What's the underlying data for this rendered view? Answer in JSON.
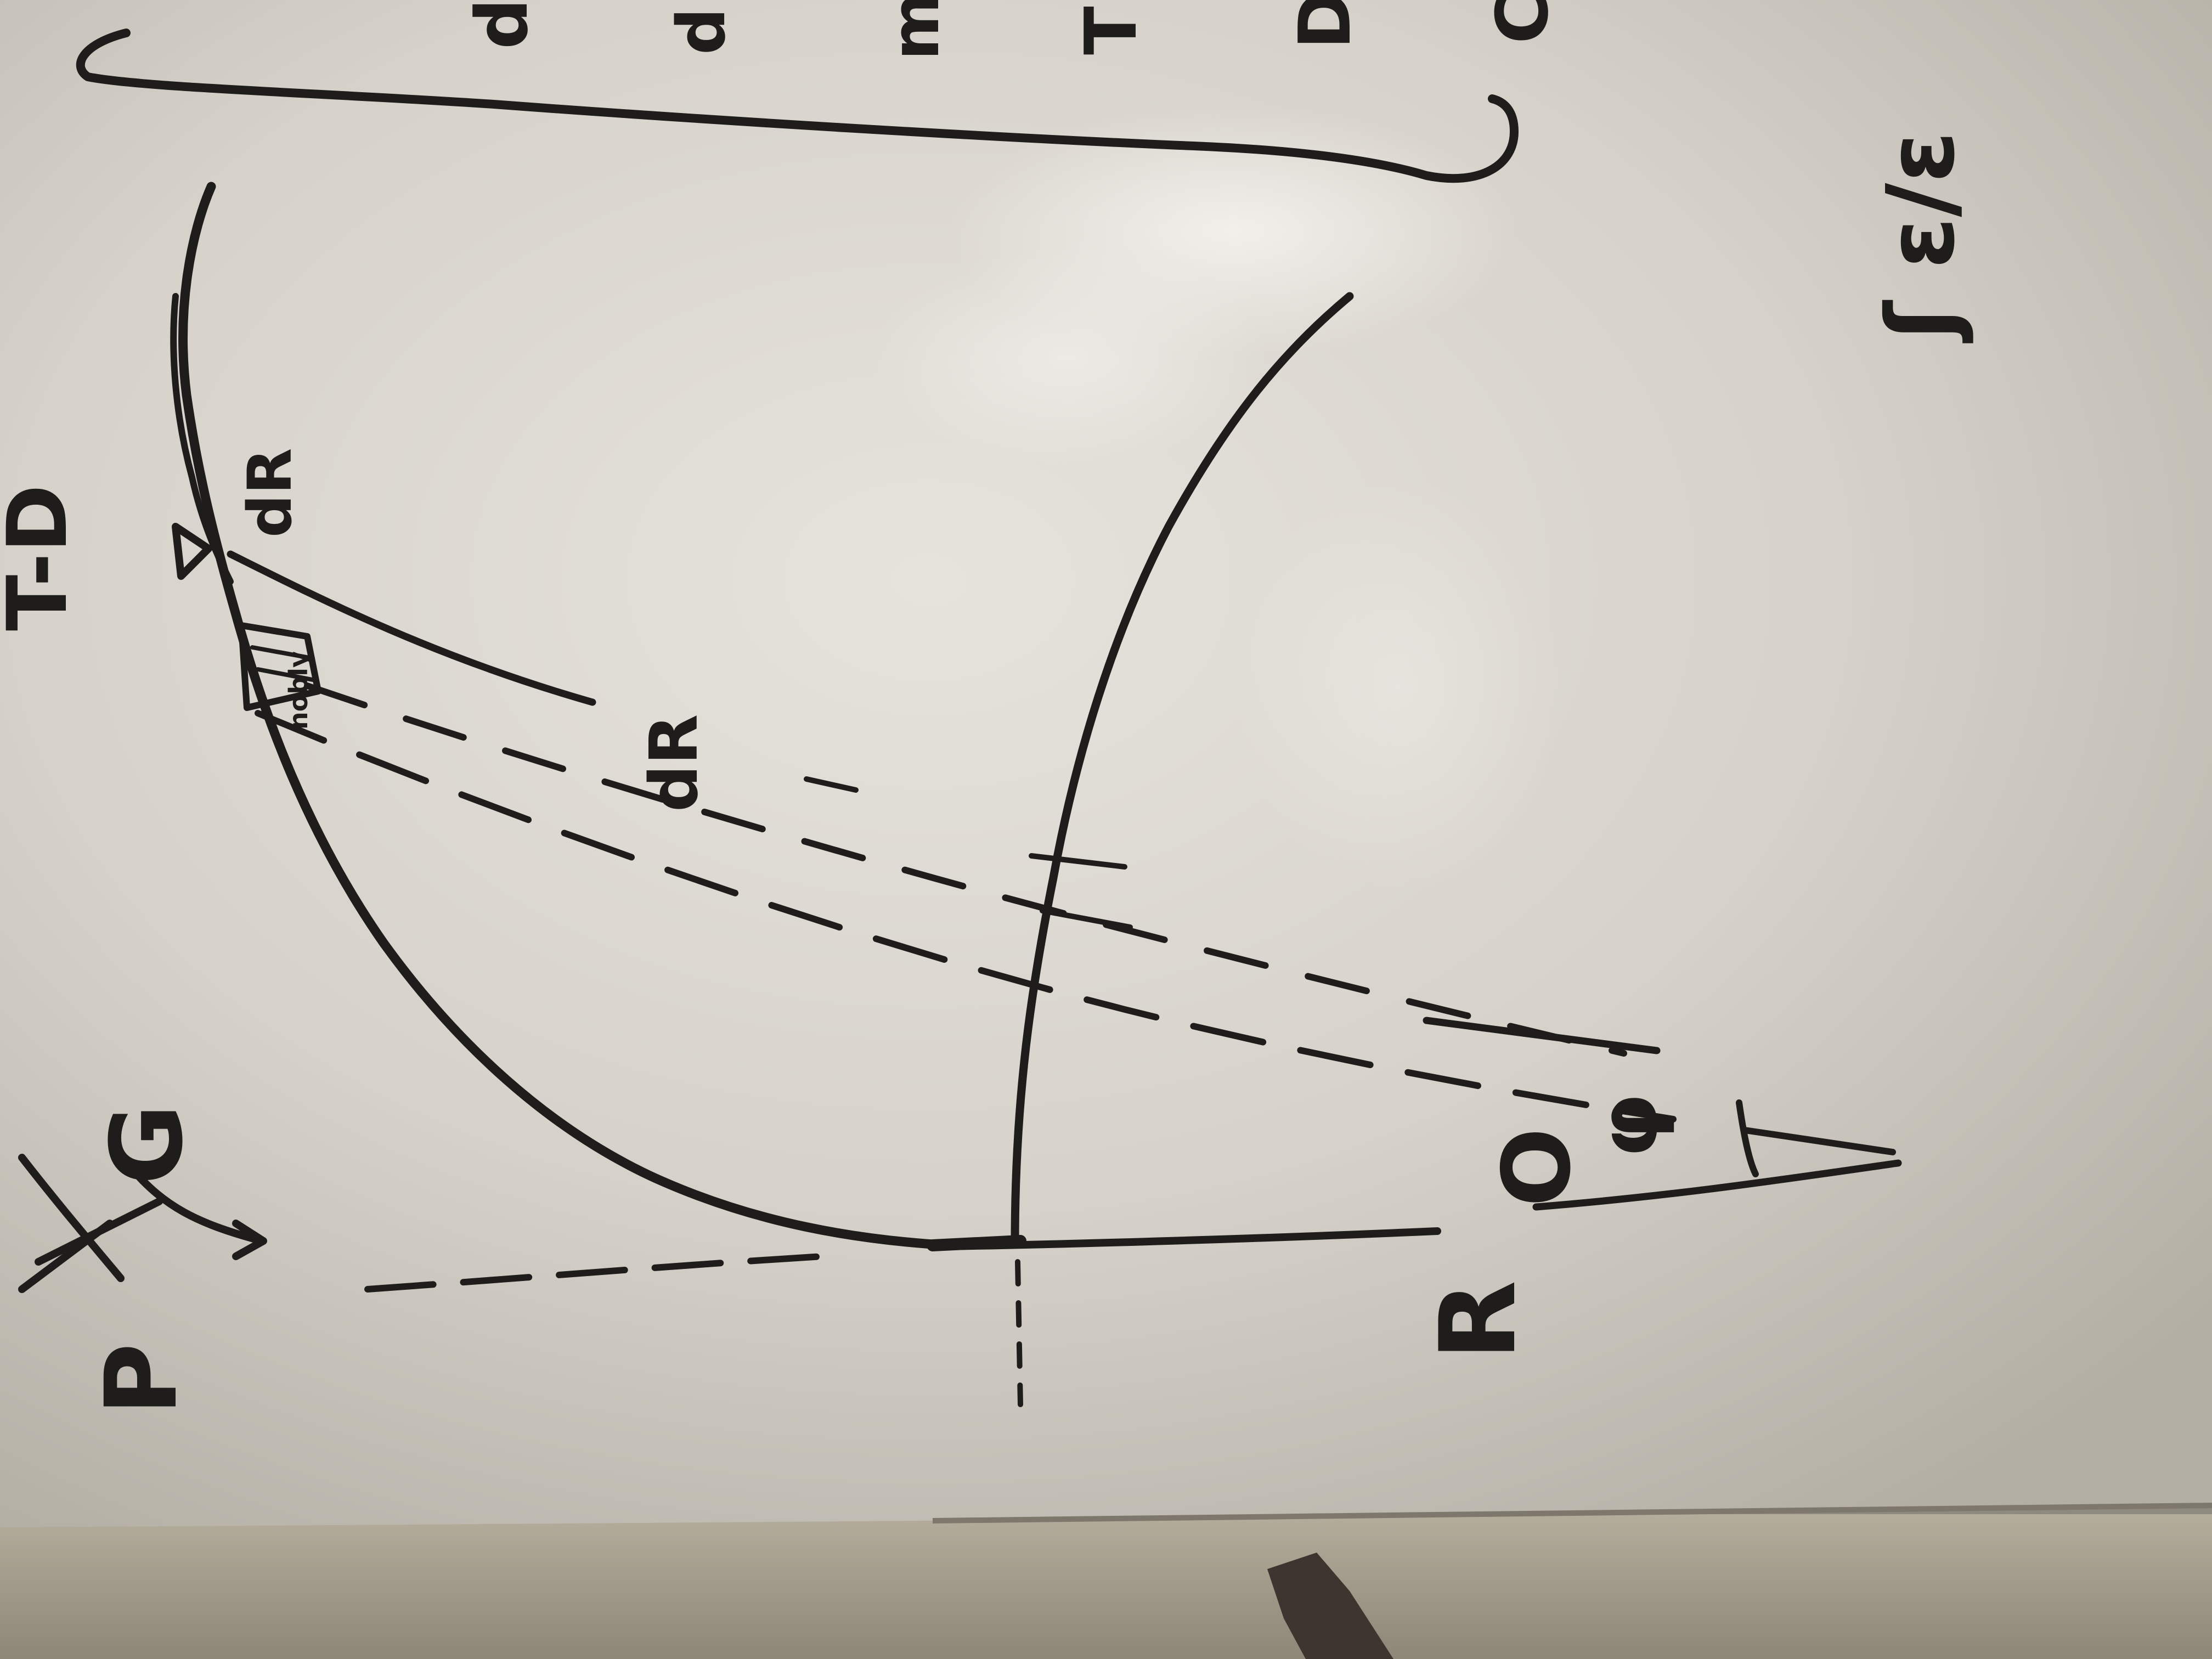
{
  "photo": {
    "subject": "whiteboard",
    "board_color": "#d9d6cf",
    "ink_color": "#1f1d1b",
    "wall_color": "#a59f91"
  },
  "labels": {
    "point_top": "T-D",
    "point_bottom": "R",
    "origin": "O",
    "angle": "φ",
    "tangent_label": "dR",
    "inner_label": "dR",
    "force_left": "P",
    "force_g": "G",
    "side_note": "ʃ ε/ε"
  },
  "edge_letters": [
    "d",
    "d",
    "m",
    "T",
    "D",
    "C"
  ],
  "marks": {
    "tiny_text": "nobly"
  }
}
